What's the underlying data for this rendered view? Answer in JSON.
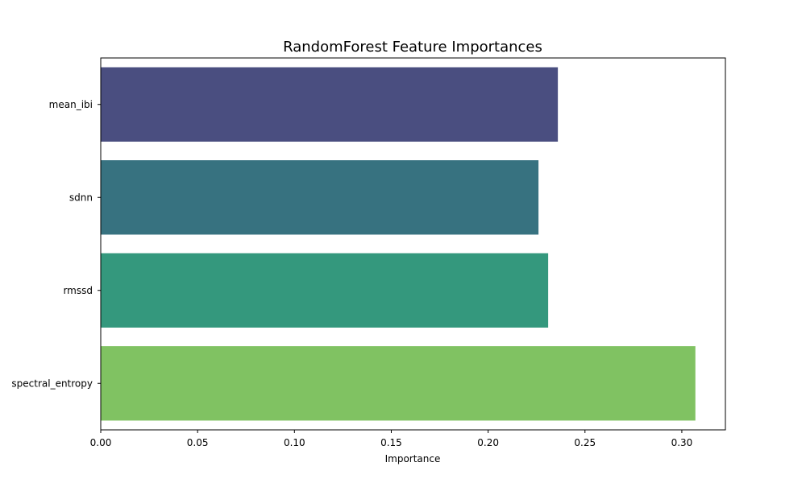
{
  "chart_data": {
    "type": "bar",
    "orientation": "horizontal",
    "title": "RandomForest Feature Importances",
    "xlabel": "Importance",
    "ylabel": "",
    "categories": [
      "mean_ibi",
      "sdnn",
      "rmssd",
      "spectral_entropy"
    ],
    "values": [
      0.236,
      0.226,
      0.231,
      0.307
    ],
    "colors": [
      "#4a4e80",
      "#377280",
      "#34987d",
      "#80c262"
    ],
    "xlim": [
      0,
      0.3225
    ],
    "xticks": [
      {
        "value": 0,
        "label": "0.00"
      },
      {
        "value": 0.05,
        "label": "0.05"
      },
      {
        "value": 0.1,
        "label": "0.10"
      },
      {
        "value": 0.15,
        "label": "0.15"
      },
      {
        "value": 0.2,
        "label": "0.20"
      },
      {
        "value": 0.25,
        "label": "0.25"
      },
      {
        "value": 0.3,
        "label": "0.30"
      }
    ],
    "grid": false,
    "legend": "none"
  }
}
